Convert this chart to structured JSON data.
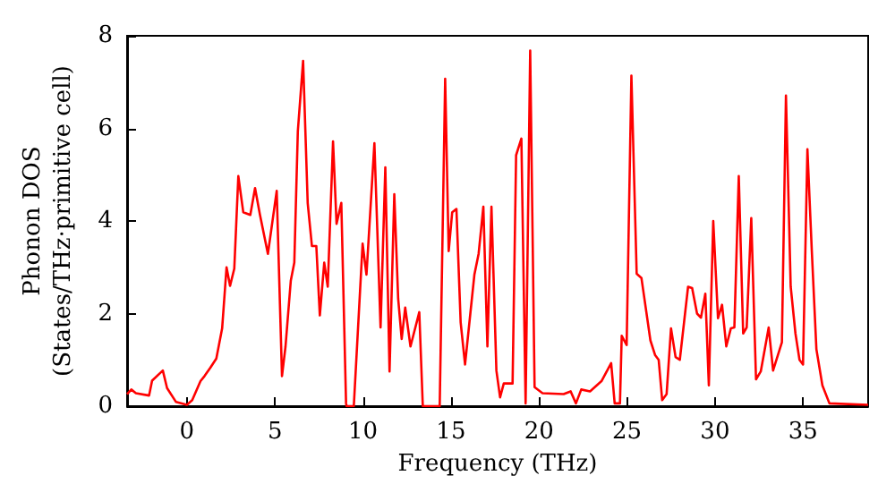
{
  "chart_data": {
    "type": "line",
    "xlabel": "Frequency (THz)",
    "ylabel": "Phonon DOS\n(States/THz·primitive cell)",
    "xlim": [
      -3.4,
      38.7
    ],
    "xticks": [
      0,
      5,
      10,
      15,
      20,
      25,
      30,
      35
    ],
    "ylim": [
      0,
      8
    ],
    "yticks": [
      0,
      2,
      4,
      6,
      8
    ],
    "marker": "none",
    "line_style": "solid",
    "series": [
      {
        "color": "#ff0000",
        "x": [
          -3.4,
          -3.16,
          -2.9,
          -2.15,
          -1.98,
          -1.37,
          -1.13,
          -0.62,
          0,
          0.3,
          0.77,
          1.0,
          1.33,
          1.67,
          2.0,
          2.25,
          2.45,
          2.69,
          2.92,
          3.2,
          3.6,
          3.87,
          4.15,
          4.6,
          5.1,
          5.4,
          5.6,
          5.9,
          6.1,
          6.3,
          6.6,
          6.86,
          7.1,
          7.35,
          7.55,
          7.8,
          8.0,
          8.3,
          8.5,
          8.77,
          9.04,
          9.07,
          9.48,
          9.98,
          10.2,
          10.65,
          11.0,
          11.27,
          11.51,
          11.78,
          12.0,
          12.2,
          12.4,
          12.7,
          13.2,
          13.4,
          14.36,
          14.67,
          14.87,
          15.07,
          15.31,
          15.55,
          15.8,
          16.1,
          16.33,
          16.57,
          16.84,
          17.07,
          17.3,
          17.58,
          17.79,
          18.0,
          18.5,
          18.7,
          19.0,
          19.24,
          19.5,
          19.75,
          20.2,
          21.4,
          21.8,
          22.1,
          22.4,
          22.9,
          23.55,
          24.1,
          24.3,
          24.6,
          24.7,
          24.98,
          25.25,
          25.55,
          25.82,
          26.33,
          26.6,
          26.8,
          27.0,
          27.25,
          27.5,
          27.76,
          28.0,
          28.47,
          28.7,
          28.98,
          29.2,
          29.45,
          29.65,
          29.9,
          30.17,
          30.4,
          30.64,
          30.9,
          31.1,
          31.35,
          31.6,
          31.8,
          32.06,
          32.33,
          32.6,
          33.05,
          33.3,
          33.8,
          34.03,
          34.3,
          34.57,
          34.8,
          35.0,
          35.25,
          35.5,
          35.76,
          36.1,
          36.5,
          38.7
        ],
        "values": [
          0.26,
          0.36,
          0.28,
          0.23,
          0.55,
          0.77,
          0.39,
          0.09,
          0.03,
          0.13,
          0.54,
          0.65,
          0.83,
          1.03,
          1.68,
          3.0,
          2.6,
          2.97,
          4.97,
          4.19,
          4.13,
          4.71,
          4.13,
          3.29,
          4.65,
          0.65,
          1.29,
          2.71,
          3.1,
          5.94,
          7.46,
          4.39,
          3.46,
          3.46,
          1.96,
          3.1,
          2.58,
          5.72,
          3.94,
          4.39,
          0.06,
          0,
          0,
          3.51,
          2.84,
          5.68,
          1.7,
          5.16,
          0.75,
          4.58,
          2.32,
          1.45,
          2.13,
          1.29,
          2.03,
          0,
          0,
          7.07,
          3.35,
          4.19,
          4.26,
          1.81,
          0.9,
          2.0,
          2.84,
          3.29,
          4.31,
          1.29,
          4.31,
          0.77,
          0.19,
          0.49,
          0.49,
          5.42,
          5.78,
          0.06,
          7.68,
          0.41,
          0.28,
          0.26,
          0.32,
          0.06,
          0.36,
          0.32,
          0.54,
          0.93,
          0.06,
          0.06,
          1.52,
          1.32,
          7.14,
          2.86,
          2.77,
          1.42,
          1.1,
          1.0,
          0.13,
          0.26,
          1.68,
          1.06,
          1.0,
          2.58,
          2.55,
          2.0,
          1.91,
          2.43,
          0.45,
          4.0,
          1.9,
          2.19,
          1.29,
          1.68,
          1.7,
          4.97,
          1.57,
          1.7,
          4.06,
          0.58,
          0.75,
          1.7,
          0.77,
          1.38,
          6.71,
          2.58,
          1.57,
          1.0,
          0.9,
          5.55,
          3.35,
          1.23,
          0.45,
          0.06,
          0.03
        ]
      }
    ]
  }
}
